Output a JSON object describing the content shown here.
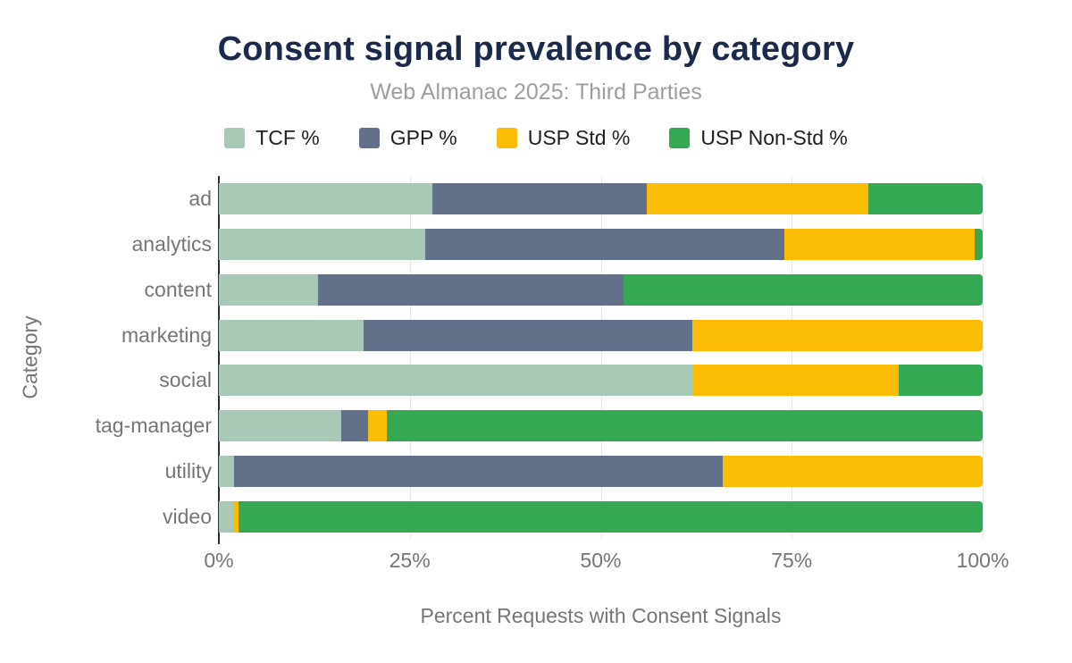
{
  "header": {
    "title": "Consent signal prevalence by category",
    "subtitle": "Web Almanac 2025: Third Parties"
  },
  "chart_data": {
    "type": "bar",
    "orientation": "horizontal",
    "stacked": true,
    "title": "Consent signal prevalence by category",
    "subtitle": "Web Almanac 2025: Third Parties",
    "xlabel": "Percent Requests with Consent Signals",
    "ylabel": "Category",
    "xlim": [
      0,
      100
    ],
    "x_ticks": [
      "0%",
      "25%",
      "50%",
      "75%",
      "100%"
    ],
    "x_tick_values": [
      0,
      25,
      50,
      75,
      100
    ],
    "grid": true,
    "legend_position": "top",
    "categories": [
      "ad",
      "analytics",
      "content",
      "marketing",
      "social",
      "tag-manager",
      "utility",
      "video"
    ],
    "series": [
      {
        "name": "TCF %",
        "color": "#a8c9b5",
        "values": [
          28,
          27,
          13,
          19,
          62,
          16,
          2,
          2
        ]
      },
      {
        "name": "GPP %",
        "color": "#627189",
        "values": [
          28,
          47,
          40,
          43,
          0,
          3.5,
          64,
          0
        ]
      },
      {
        "name": "USP Std %",
        "color": "#fbbc04",
        "values": [
          29,
          25,
          0,
          38,
          27,
          2.5,
          34,
          0.6
        ]
      },
      {
        "name": "USP Non-Std %",
        "color": "#34a853",
        "values": [
          15,
          1,
          47,
          0,
          11,
          78,
          0,
          97.4
        ]
      }
    ],
    "colors": {
      "title_text": "#1b2a4a",
      "subtitle_text": "#9e9e9e",
      "axis_text": "#757575",
      "legend_text": "#1f1f1f",
      "gridline": "#e7e7e7",
      "axis_line": "#2b2f36",
      "background": "#ffffff"
    }
  }
}
